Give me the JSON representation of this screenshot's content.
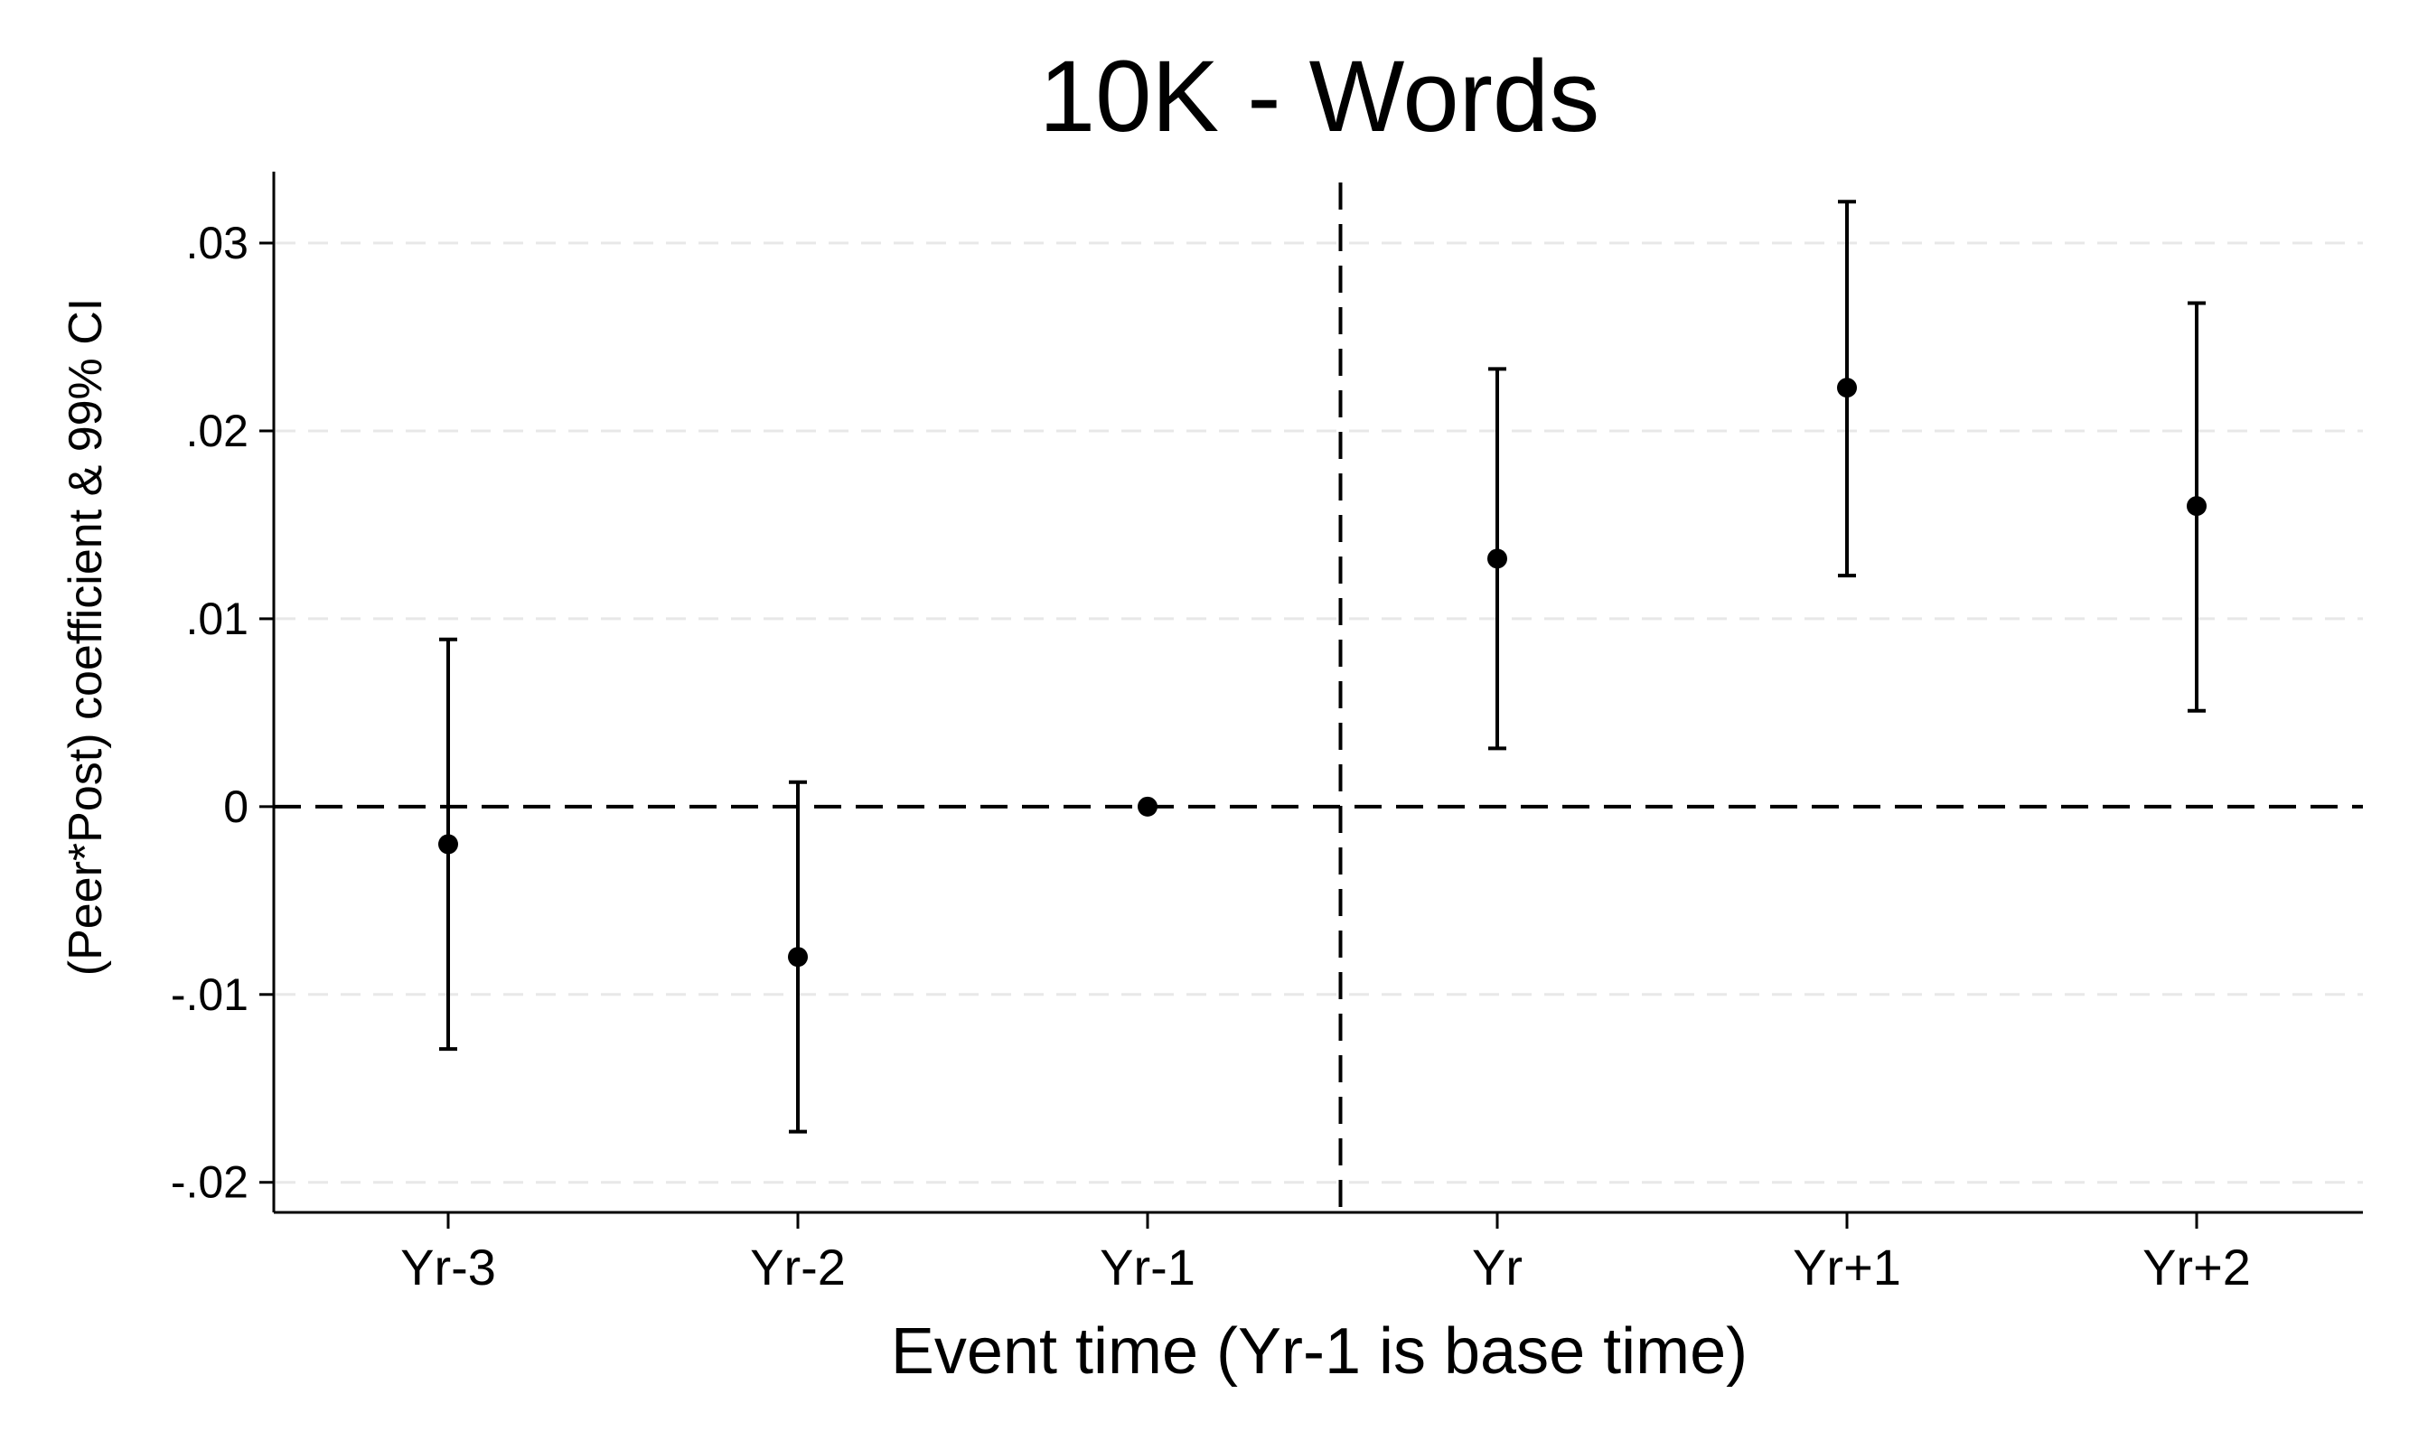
{
  "chart_data": {
    "type": "scatter",
    "title": "10K - Words",
    "xlabel": "Event time (Yr-1 is base time)",
    "ylabel": "(Peer*Post) coefficient & 99% CI",
    "categories": [
      "Yr-3",
      "Yr-2",
      "Yr-1",
      "Yr",
      "Yr+1",
      "Yr+2"
    ],
    "series": [
      {
        "estimates": [
          -0.002,
          -0.008,
          0.0,
          0.0132,
          0.0223,
          0.016
        ],
        "ci_low": [
          -0.0129,
          -0.0173,
          null,
          0.0031,
          0.0123,
          0.0051
        ],
        "ci_high": [
          0.0089,
          0.0013,
          null,
          0.0233,
          0.0322,
          0.0268
        ]
      }
    ],
    "yticks": [
      -0.02,
      -0.01,
      0,
      0.01,
      0.02,
      0.03
    ],
    "ytick_labels": [
      "-.02",
      "-.01",
      "0",
      ".01",
      ".02",
      ".03"
    ],
    "ylim": [
      -0.0216,
      0.0338
    ],
    "reference_lines": {
      "horizontal_y": 0,
      "vertical_between": [
        "Yr-1",
        "Yr"
      ]
    },
    "grid": "horizontal dashed",
    "legend": "none",
    "colors": {
      "marker": "#000000",
      "grid": "#e8e8e8",
      "axis": "#000000"
    }
  }
}
